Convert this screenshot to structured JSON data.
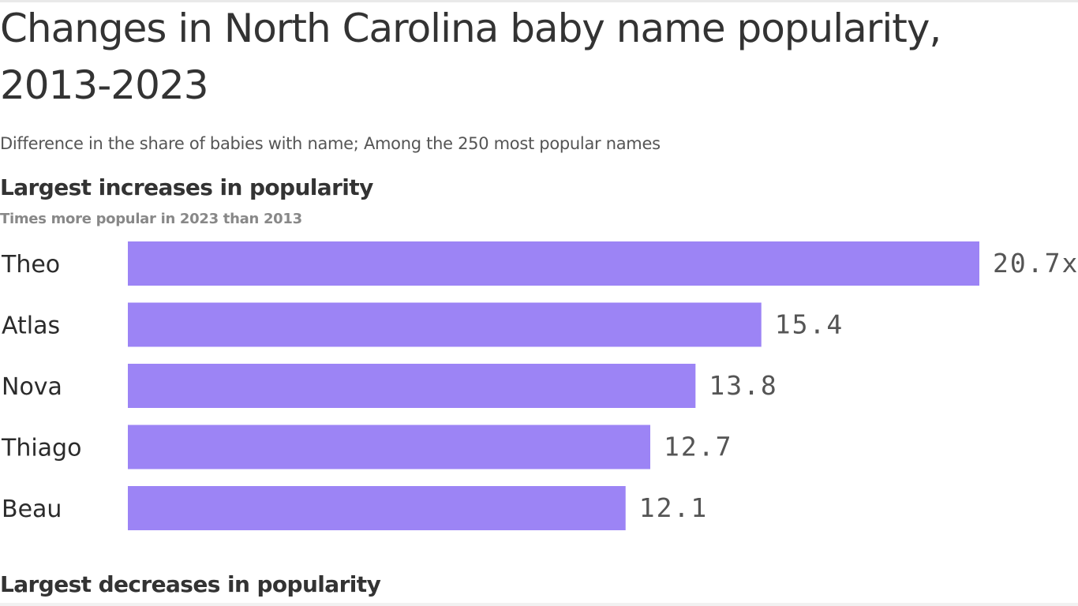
{
  "title": "Changes in North Carolina baby name popularity, 2013-2023",
  "subtitle": "Difference in the share of babies with name; Among the 250 most popular names",
  "increases": {
    "heading": "Largest increases in popularity",
    "subheading": "Times more popular in 2023 than 2013"
  },
  "decreases": {
    "heading": "Largest decreases in popularity"
  },
  "chart_data": {
    "type": "bar",
    "orientation": "horizontal",
    "categories": [
      "Theo",
      "Atlas",
      "Nova",
      "Thiago",
      "Beau"
    ],
    "values": [
      20.7,
      15.4,
      13.8,
      12.7,
      12.1
    ],
    "value_labels": [
      "20.7x",
      "15.4",
      "13.8",
      "12.7",
      "12.1"
    ],
    "xlim": [
      0,
      20.7
    ],
    "bar_color": "#9c84f5",
    "label_color": "#555555",
    "grid": false
  }
}
